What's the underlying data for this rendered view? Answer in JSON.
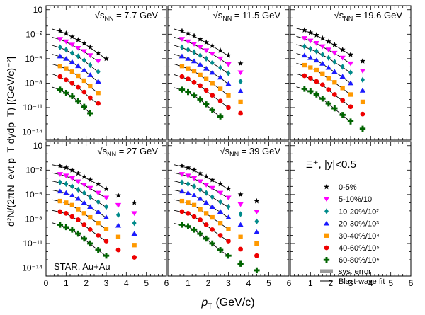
{
  "chart_data": [
    {
      "type": "scatter",
      "energy_label": "√s_NN = 7.7 GeV",
      "x": [
        0.7,
        1.0,
        1.3,
        1.6,
        1.9,
        2.2,
        2.6,
        3.0
      ],
      "series": [
        {
          "name": "0-5%",
          "values": [
            -1.6,
            -1.9,
            -2.3,
            -2.7,
            -3.1,
            -3.6,
            -4.3,
            -5.0
          ]
        },
        {
          "name": "5-10%/10",
          "values": [
            -2.6,
            -2.9,
            -3.3,
            -3.7,
            -4.1,
            -4.6,
            -5.3
          ]
        },
        {
          "name": "10-20%/10^2",
          "values": [
            -3.6,
            -3.9,
            -4.3,
            -4.7,
            -5.2,
            -5.8,
            -6.6
          ]
        },
        {
          "name": "20-30%/10^3",
          "values": [
            -4.7,
            -5.0,
            -5.4,
            -5.9,
            -6.4,
            -7.0,
            -7.8
          ]
        },
        {
          "name": "30-40%/10^4",
          "values": [
            -5.9,
            -6.2,
            -6.6,
            -7.1,
            -7.7,
            -8.4,
            -9.2
          ]
        },
        {
          "name": "40-60%/10^5",
          "values": [
            -7.2,
            -7.6,
            -8.0,
            -8.5,
            -9.1,
            -9.8,
            -10.5
          ]
        },
        {
          "name": "60-80%/10^6",
          "values": [
            -8.8,
            -9.2,
            -9.6,
            -10.2,
            -10.9,
            -11.7
          ]
        }
      ]
    },
    {
      "type": "scatter",
      "energy_label": "√s_NN = 11.5 GeV",
      "x": [
        0.7,
        1.0,
        1.3,
        1.6,
        1.9,
        2.2,
        2.6,
        3.0,
        3.6
      ],
      "series": [
        {
          "name": "0-5%",
          "values": [
            -1.6,
            -1.9,
            -2.2,
            -2.6,
            -3.0,
            -3.4,
            -4.0,
            -4.6,
            -5.6
          ]
        },
        {
          "name": "5-10%/10",
          "values": [
            -2.6,
            -2.9,
            -3.2,
            -3.6,
            -4.0,
            -4.4,
            -5.0,
            -5.7,
            -6.7
          ]
        },
        {
          "name": "10-20%/10^2",
          "values": [
            -3.6,
            -3.9,
            -4.2,
            -4.6,
            -5.0,
            -5.5,
            -6.1,
            -6.8,
            -7.8
          ]
        },
        {
          "name": "20-30%/10^3",
          "values": [
            -4.7,
            -5.0,
            -5.3,
            -5.7,
            -6.2,
            -6.7,
            -7.3,
            -8.1,
            -9.0
          ]
        },
        {
          "name": "30-40%/10^4",
          "values": [
            -5.9,
            -6.2,
            -6.5,
            -7.0,
            -7.5,
            -8.0,
            -8.7,
            -9.5,
            -10.3
          ]
        },
        {
          "name": "40-60%/10^5",
          "values": [
            -7.2,
            -7.5,
            -7.9,
            -8.3,
            -8.9,
            -9.5,
            -10.2,
            -11.0,
            -11.7
          ]
        },
        {
          "name": "60-80%/10^6",
          "values": [
            -8.8,
            -9.1,
            -9.5,
            -10.0,
            -10.6,
            -11.3,
            -12.1
          ]
        }
      ]
    },
    {
      "type": "scatter",
      "energy_label": "√s_NN = 19.6 GeV",
      "x": [
        0.7,
        1.0,
        1.3,
        1.6,
        1.9,
        2.2,
        2.6,
        3.0,
        3.6
      ],
      "series": [
        {
          "name": "0-5%",
          "values": [
            -1.5,
            -1.8,
            -2.1,
            -2.5,
            -2.9,
            -3.3,
            -3.9,
            -4.5,
            -5.3
          ]
        },
        {
          "name": "5-10%/10",
          "values": [
            -2.5,
            -2.8,
            -3.1,
            -3.5,
            -3.9,
            -4.3,
            -4.9,
            -5.6,
            -6.5
          ]
        },
        {
          "name": "10-20%/10^2",
          "values": [
            -3.5,
            -3.8,
            -4.1,
            -4.5,
            -4.9,
            -5.4,
            -6.0,
            -6.7,
            -7.6
          ]
        },
        {
          "name": "20-30%/10^3",
          "values": [
            -4.6,
            -4.9,
            -5.2,
            -5.6,
            -6.1,
            -6.6,
            -7.2,
            -8.0,
            -8.9
          ]
        },
        {
          "name": "30-40%/10^4",
          "values": [
            -5.8,
            -6.1,
            -6.4,
            -6.9,
            -7.4,
            -7.9,
            -8.6,
            -9.4,
            -10.3
          ]
        },
        {
          "name": "40-60%/10^5",
          "values": [
            -7.1,
            -7.4,
            -7.8,
            -8.2,
            -8.8,
            -9.4,
            -10.1,
            -10.9,
            -11.8
          ]
        },
        {
          "name": "60-80%/10^6",
          "values": [
            -8.7,
            -9.0,
            -9.4,
            -9.9,
            -10.5,
            -11.1,
            -11.9,
            -12.7,
            -13.6
          ]
        }
      ]
    },
    {
      "type": "scatter",
      "energy_label": "√s_NN = 27 GeV",
      "x": [
        0.7,
        1.0,
        1.3,
        1.6,
        1.9,
        2.2,
        2.6,
        3.0,
        3.6,
        4.4
      ],
      "series": [
        {
          "name": "0-5%",
          "values": [
            -1.5,
            -1.7,
            -2.0,
            -2.4,
            -2.8,
            -3.2,
            -3.7,
            -4.3,
            -5.1,
            -6.0
          ]
        },
        {
          "name": "5-10%/10",
          "values": [
            -2.5,
            -2.7,
            -3.0,
            -3.4,
            -3.8,
            -4.2,
            -4.8,
            -5.4,
            -6.3,
            -7.3
          ]
        },
        {
          "name": "10-20%/10^2",
          "values": [
            -3.5,
            -3.7,
            -4.0,
            -4.4,
            -4.8,
            -5.3,
            -5.9,
            -6.5,
            -7.5,
            -8.5
          ]
        },
        {
          "name": "20-30%/10^3",
          "values": [
            -4.6,
            -4.8,
            -5.1,
            -5.5,
            -6.0,
            -6.5,
            -7.1,
            -7.8,
            -8.8,
            -9.8
          ]
        },
        {
          "name": "30-40%/10^4",
          "values": [
            -5.8,
            -6.0,
            -6.3,
            -6.8,
            -7.3,
            -7.8,
            -8.5,
            -9.2,
            -10.2,
            -11.2
          ]
        },
        {
          "name": "40-60%/10^5",
          "values": [
            -7.1,
            -7.3,
            -7.7,
            -8.1,
            -8.7,
            -9.3,
            -10.0,
            -10.7,
            -11.8,
            -12.7
          ]
        },
        {
          "name": "60-80%/10^6",
          "values": [
            -8.7,
            -9.0,
            -9.3,
            -9.8,
            -10.4,
            -11.0,
            -11.8,
            -12.5
          ]
        }
      ]
    },
    {
      "type": "scatter",
      "energy_label": "√s_NN = 39 GeV",
      "x": [
        0.7,
        1.0,
        1.3,
        1.6,
        1.9,
        2.2,
        2.6,
        3.0,
        3.6,
        4.4
      ],
      "series": [
        {
          "name": "0-5%",
          "values": [
            -1.5,
            -1.7,
            -2.0,
            -2.4,
            -2.8,
            -3.2,
            -3.7,
            -4.3,
            -5.0,
            -5.8
          ]
        },
        {
          "name": "5-10%/10",
          "values": [
            -2.5,
            -2.7,
            -3.0,
            -3.4,
            -3.8,
            -4.2,
            -4.8,
            -5.4,
            -6.2,
            -7.1
          ]
        },
        {
          "name": "10-20%/10^2",
          "values": [
            -3.5,
            -3.7,
            -4.0,
            -4.4,
            -4.8,
            -5.3,
            -5.9,
            -6.5,
            -7.4,
            -8.3
          ]
        },
        {
          "name": "20-30%/10^3",
          "values": [
            -4.6,
            -4.8,
            -5.1,
            -5.5,
            -6.0,
            -6.5,
            -7.1,
            -7.8,
            -8.7,
            -9.6
          ]
        },
        {
          "name": "30-40%/10^4",
          "values": [
            -5.8,
            -6.0,
            -6.3,
            -6.8,
            -7.3,
            -7.8,
            -8.5,
            -9.2,
            -10.2,
            -11.0
          ]
        },
        {
          "name": "40-60%/10^5",
          "values": [
            -7.1,
            -7.3,
            -7.7,
            -8.1,
            -8.7,
            -9.3,
            -10.0,
            -10.7,
            -11.7,
            -12.5
          ]
        },
        {
          "name": "60-80%/10^6",
          "values": [
            -8.7,
            -8.9,
            -9.3,
            -9.8,
            -10.4,
            -11.0,
            -11.8,
            -12.5,
            -13.5,
            -14.3
          ]
        }
      ]
    }
  ],
  "axes": {
    "xlabel_main": "p",
    "xlabel_sub": "T",
    "xlabel_unit": " (GeV/c)",
    "ylabel": "d²N/(2πN_evt p_T dydp_T) [(GeV/c)⁻²]",
    "xlim": [
      0,
      6
    ],
    "ylim_log10": [
      -15,
      1.5
    ],
    "x_ticks": [
      "0",
      "1",
      "2",
      "3",
      "4",
      "5",
      "6"
    ],
    "y_ticks": [
      "10",
      "10⁻²",
      "10⁻⁵",
      "10⁻⁸",
      "10⁻¹¹",
      "10⁻¹⁴"
    ],
    "y_ticks_log10": [
      1,
      -2,
      -5,
      -8,
      -11,
      -14
    ]
  },
  "label_prefix": "√s",
  "label_sub": "NN",
  "legend": {
    "title": "Ξ̄⁺, |y|<0.5",
    "items": [
      {
        "label": "0-5%",
        "color": "#000000",
        "marker": "star"
      },
      {
        "label": "5-10%/10",
        "color": "#ff00ff",
        "marker": "triangle-down"
      },
      {
        "label": "10-20%/10²",
        "color": "#008b8b",
        "marker": "diamond"
      },
      {
        "label": "20-30%/10³",
        "color": "#1a1aff",
        "marker": "triangle-up"
      },
      {
        "label": "30-40%/10⁴",
        "color": "#ff9900",
        "marker": "square"
      },
      {
        "label": "40-60%/10⁵",
        "color": "#ee0000",
        "marker": "circle"
      },
      {
        "label": "60-80%/10⁶",
        "color": "#006400",
        "marker": "cross"
      }
    ],
    "sys_label": "sys. error",
    "fit_label": "Blast-wave fit"
  },
  "annotation": "STAR, Au+Au"
}
